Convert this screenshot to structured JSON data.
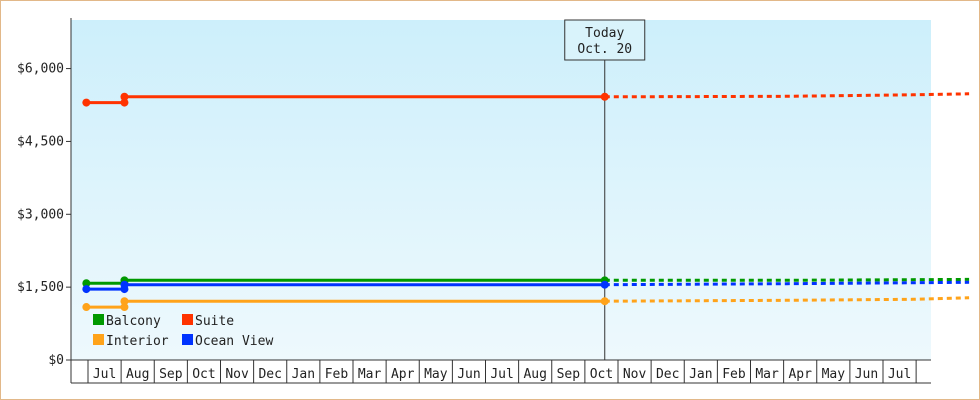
{
  "chart_data": {
    "type": "line",
    "ylim": [
      0,
      7000
    ],
    "y_ticks": [
      {
        "value": 0,
        "label": "$0"
      },
      {
        "value": 1500,
        "label": "$1,500"
      },
      {
        "value": 3000,
        "label": "$3,000"
      },
      {
        "value": 4500,
        "label": "$4,500"
      },
      {
        "value": 6000,
        "label": "$6,000"
      }
    ],
    "x_months": [
      "Jul",
      "Aug",
      "Sep",
      "Oct",
      "Nov",
      "Dec",
      "Jan",
      "Feb",
      "Mar",
      "Apr",
      "May",
      "Jun",
      "Jul",
      "Aug",
      "Sep",
      "Oct",
      "Nov",
      "Dec",
      "Jan",
      "Feb",
      "Mar",
      "Apr",
      "May",
      "Jun",
      "Jul"
    ],
    "today": {
      "label_line1": "Today",
      "label_line2": "Oct. 20",
      "month_index": 15.6
    },
    "series": [
      {
        "name": "Suite",
        "color": "#ff3300",
        "actual": [
          {
            "m": -0.05,
            "v": 5300
          },
          {
            "m": 1.1,
            "v": 5300
          },
          {
            "m": 1.1,
            "v": 5420
          },
          {
            "m": 15.6,
            "v": 5420
          }
        ],
        "forecast": [
          {
            "m": 15.6,
            "v": 5420
          },
          {
            "m": 17.1,
            "v": 5420
          },
          {
            "m": 21.1,
            "v": 5430
          },
          {
            "m": 24.9,
            "v": 5460
          },
          {
            "m": 26.6,
            "v": 5480
          }
        ],
        "markers": [
          {
            "m": -0.05,
            "v": 5300
          },
          {
            "m": 1.1,
            "v": 5300
          },
          {
            "m": 1.1,
            "v": 5420
          },
          {
            "m": 15.6,
            "v": 5420
          }
        ]
      },
      {
        "name": "Balcony",
        "color": "#009900",
        "actual": [
          {
            "m": -0.05,
            "v": 1580
          },
          {
            "m": 1.1,
            "v": 1580
          },
          {
            "m": 1.1,
            "v": 1640
          },
          {
            "m": 15.6,
            "v": 1640
          }
        ],
        "forecast": [
          {
            "m": 15.6,
            "v": 1640
          },
          {
            "m": 21.1,
            "v": 1640
          },
          {
            "m": 26.6,
            "v": 1660
          }
        ],
        "markers": [
          {
            "m": -0.05,
            "v": 1580
          },
          {
            "m": 1.1,
            "v": 1580
          },
          {
            "m": 1.1,
            "v": 1640
          },
          {
            "m": 15.6,
            "v": 1640
          }
        ]
      },
      {
        "name": "Ocean View",
        "color": "#0033ff",
        "actual": [
          {
            "m": -0.05,
            "v": 1460
          },
          {
            "m": 1.1,
            "v": 1460
          },
          {
            "m": 1.1,
            "v": 1550
          },
          {
            "m": 15.6,
            "v": 1550
          }
        ],
        "forecast": [
          {
            "m": 15.6,
            "v": 1550
          },
          {
            "m": 21.1,
            "v": 1570
          },
          {
            "m": 26.6,
            "v": 1600
          }
        ],
        "markers": [
          {
            "m": -0.05,
            "v": 1460
          },
          {
            "m": 1.1,
            "v": 1460
          },
          {
            "m": 1.1,
            "v": 1550
          },
          {
            "m": 15.6,
            "v": 1550
          }
        ]
      },
      {
        "name": "Interior",
        "color": "#ffa31a",
        "actual": [
          {
            "m": -0.05,
            "v": 1090
          },
          {
            "m": 1.1,
            "v": 1090
          },
          {
            "m": 1.1,
            "v": 1210
          },
          {
            "m": 15.6,
            "v": 1210
          }
        ],
        "forecast": [
          {
            "m": 15.6,
            "v": 1210
          },
          {
            "m": 21.1,
            "v": 1230
          },
          {
            "m": 24.9,
            "v": 1250
          },
          {
            "m": 26.6,
            "v": 1280
          }
        ],
        "markers": [
          {
            "m": -0.05,
            "v": 1090
          },
          {
            "m": 1.1,
            "v": 1090
          },
          {
            "m": 1.1,
            "v": 1210
          },
          {
            "m": 15.6,
            "v": 1210
          }
        ]
      }
    ],
    "legend": [
      {
        "row": 0,
        "col": 0,
        "name": "Balcony",
        "color": "#009900"
      },
      {
        "row": 0,
        "col": 1,
        "name": "Suite",
        "color": "#ff3300"
      },
      {
        "row": 1,
        "col": 0,
        "name": "Interior",
        "color": "#ffa31a"
      },
      {
        "row": 1,
        "col": 1,
        "name": "Ocean View",
        "color": "#0033ff"
      }
    ],
    "legend_placement": "bottom-left",
    "background_gradient": [
      "#cdeffb",
      "#eef9fd"
    ]
  }
}
